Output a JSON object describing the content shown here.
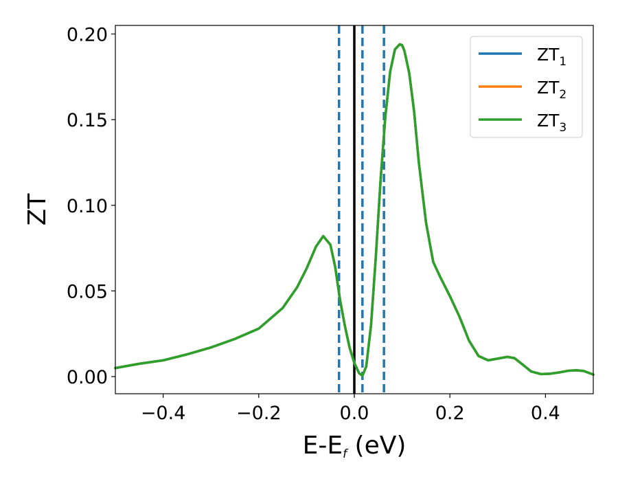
{
  "chart_data": {
    "type": "line",
    "title": "",
    "xlabel": "E-E",
    "xlabel_sub": "f",
    "xlabel_unit": " (eV)",
    "ylabel": "ZT",
    "xlim": [
      -0.5,
      0.5
    ],
    "ylim": [
      -0.01,
      0.205
    ],
    "xticks": [
      -0.4,
      -0.2,
      0.0,
      0.2,
      0.4
    ],
    "xtick_labels": [
      "−0.4",
      "−0.2",
      "0.0",
      "0.2",
      "0.4"
    ],
    "yticks": [
      0.0,
      0.05,
      0.1,
      0.15,
      0.2
    ],
    "ytick_labels": [
      "0.00",
      "0.05",
      "0.10",
      "0.15",
      "0.20"
    ],
    "grid": false,
    "legend_position": "top-right",
    "x": [
      -0.5,
      -0.45,
      -0.4,
      -0.35,
      -0.3,
      -0.25,
      -0.2,
      -0.15,
      -0.12,
      -0.1,
      -0.08,
      -0.065,
      -0.05,
      -0.04,
      -0.03,
      -0.02,
      -0.01,
      0.0,
      0.01,
      0.017,
      0.025,
      0.035,
      0.045,
      0.055,
      0.065,
      0.075,
      0.085,
      0.095,
      0.1,
      0.105,
      0.115,
      0.125,
      0.135,
      0.15,
      0.165,
      0.18,
      0.2,
      0.22,
      0.24,
      0.26,
      0.28,
      0.3,
      0.32,
      0.335,
      0.35,
      0.37,
      0.39,
      0.41,
      0.43,
      0.45,
      0.465,
      0.48,
      0.5
    ],
    "series": [
      {
        "name": "ZT",
        "name_sub": "1",
        "color": "#1f77b4",
        "values": [
          0.005,
          0.0075,
          0.0095,
          0.013,
          0.017,
          0.022,
          0.028,
          0.04,
          0.052,
          0.063,
          0.076,
          0.082,
          0.077,
          0.064,
          0.045,
          0.03,
          0.017,
          0.008,
          0.002,
          0.0005,
          0.006,
          0.03,
          0.07,
          0.115,
          0.152,
          0.178,
          0.191,
          0.194,
          0.1935,
          0.19,
          0.177,
          0.155,
          0.125,
          0.09,
          0.067,
          0.058,
          0.047,
          0.035,
          0.021,
          0.012,
          0.0095,
          0.0105,
          0.0115,
          0.0108,
          0.0075,
          0.003,
          0.0015,
          0.0017,
          0.0025,
          0.0035,
          0.0037,
          0.0033,
          0.0012
        ]
      },
      {
        "name": "ZT",
        "name_sub": "2",
        "color": "#ff7f0e",
        "values": [
          0.005,
          0.0075,
          0.0095,
          0.013,
          0.017,
          0.022,
          0.028,
          0.04,
          0.052,
          0.063,
          0.076,
          0.082,
          0.077,
          0.064,
          0.045,
          0.03,
          0.017,
          0.008,
          0.002,
          0.0005,
          0.006,
          0.03,
          0.07,
          0.115,
          0.152,
          0.178,
          0.191,
          0.194,
          0.1935,
          0.19,
          0.177,
          0.155,
          0.125,
          0.09,
          0.067,
          0.058,
          0.047,
          0.035,
          0.021,
          0.012,
          0.0095,
          0.0105,
          0.0115,
          0.0108,
          0.0075,
          0.003,
          0.0015,
          0.0017,
          0.0025,
          0.0035,
          0.0037,
          0.0033,
          0.0012
        ]
      },
      {
        "name": "ZT",
        "name_sub": "3",
        "color": "#2ca02c",
        "values": [
          0.005,
          0.0075,
          0.0095,
          0.013,
          0.017,
          0.022,
          0.028,
          0.04,
          0.052,
          0.063,
          0.076,
          0.082,
          0.077,
          0.064,
          0.045,
          0.03,
          0.017,
          0.008,
          0.002,
          0.0005,
          0.006,
          0.03,
          0.07,
          0.115,
          0.152,
          0.178,
          0.191,
          0.194,
          0.1935,
          0.19,
          0.177,
          0.155,
          0.125,
          0.09,
          0.067,
          0.058,
          0.047,
          0.035,
          0.021,
          0.012,
          0.0095,
          0.0105,
          0.0115,
          0.0108,
          0.0075,
          0.003,
          0.0015,
          0.0017,
          0.0025,
          0.0035,
          0.0037,
          0.0033,
          0.0012
        ]
      }
    ],
    "vlines": [
      {
        "x": 0.0,
        "style": "solid",
        "color": "#000000"
      },
      {
        "x": -0.032,
        "style": "dashed",
        "color": "#1f77b4"
      },
      {
        "x": 0.017,
        "style": "dashed",
        "color": "#1f77b4"
      },
      {
        "x": 0.062,
        "style": "dashed",
        "color": "#1f77b4"
      }
    ]
  }
}
